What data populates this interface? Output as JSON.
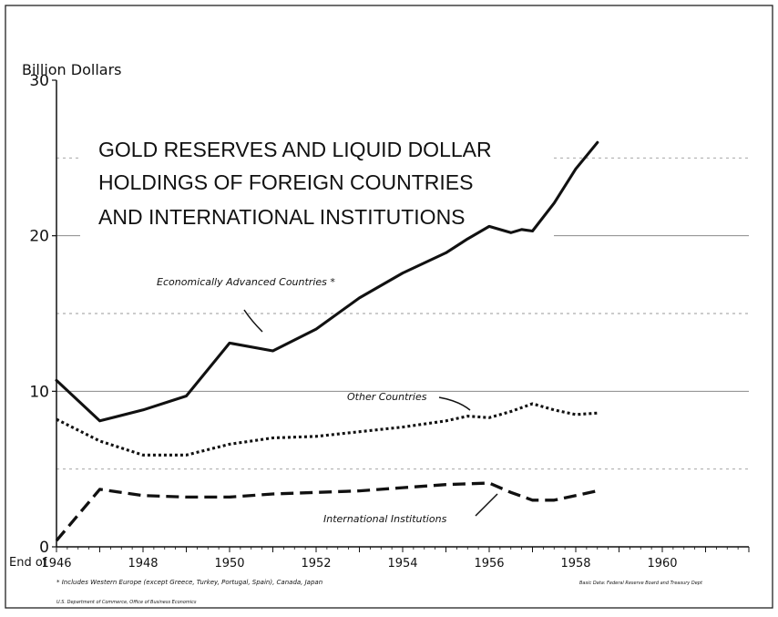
{
  "chart_data": {
    "type": "line",
    "title": "GOLD RESERVES AND LIQUID DOLLAR HOLDINGS OF FOREIGN COUNTRIES AND INTERNATIONAL INSTITUTIONS",
    "title_lines": [
      "GOLD RESERVES AND LIQUID DOLLAR",
      "HOLDINGS OF FOREIGN COUNTRIES",
      "AND INTERNATIONAL INSTITUTIONS"
    ],
    "ylabel": "Billion Dollars",
    "ylim": [
      0,
      30
    ],
    "yticks": [
      0,
      10,
      20,
      30
    ],
    "xlim": [
      1946,
      1962
    ],
    "x_axis_prefix": "End of",
    "xticks": [
      1946,
      1948,
      1950,
      1952,
      1954,
      1956,
      1958,
      1960
    ],
    "xtick_labels": [
      "1946",
      "1948",
      "1950",
      "1952",
      "1954",
      "1956",
      "1958",
      "1960"
    ],
    "grid": true,
    "legend": "none",
    "series": [
      {
        "name": "Economically Advanced Countries *",
        "style": "solid",
        "x": [
          1946,
          1947,
          1948,
          1949,
          1950,
          1951,
          1952,
          1953,
          1954,
          1955,
          1955.5,
          1956,
          1956.5,
          1956.75,
          1957,
          1957.5,
          1958,
          1958.5
        ],
        "y": [
          10.7,
          8.1,
          8.8,
          9.7,
          13.1,
          12.6,
          14.0,
          16.0,
          17.6,
          18.9,
          19.8,
          20.6,
          20.2,
          20.4,
          20.3,
          22.1,
          24.3,
          26.0
        ]
      },
      {
        "name": "Other Countries",
        "style": "dotted",
        "x": [
          1946,
          1947,
          1948,
          1949,
          1950,
          1951,
          1952,
          1953,
          1954,
          1955,
          1955.5,
          1956,
          1956.5,
          1957,
          1957.5,
          1958,
          1958.5
        ],
        "y": [
          8.2,
          6.8,
          5.9,
          5.9,
          6.6,
          7.0,
          7.1,
          7.4,
          7.7,
          8.1,
          8.4,
          8.3,
          8.7,
          9.2,
          8.8,
          8.5,
          8.6
        ]
      },
      {
        "name": "International Institutions",
        "style": "dashed",
        "x": [
          1946,
          1947,
          1948,
          1949,
          1950,
          1951,
          1952,
          1953,
          1954,
          1955,
          1956,
          1956.5,
          1957,
          1957.5,
          1958,
          1958.5
        ],
        "y": [
          0.4,
          3.7,
          3.3,
          3.2,
          3.2,
          3.4,
          3.5,
          3.6,
          3.8,
          4.0,
          4.1,
          3.5,
          3.0,
          3.0,
          3.3,
          3.6
        ]
      }
    ],
    "footnote": "* Includes Western Europe (except Greece, Turkey, Portugal, Spain), Canada, Japan",
    "source": "Basic Data: Federal Reserve Board and Treasury Dept",
    "agency": "U.S. Department of Commerce, Office of Business Economics"
  }
}
